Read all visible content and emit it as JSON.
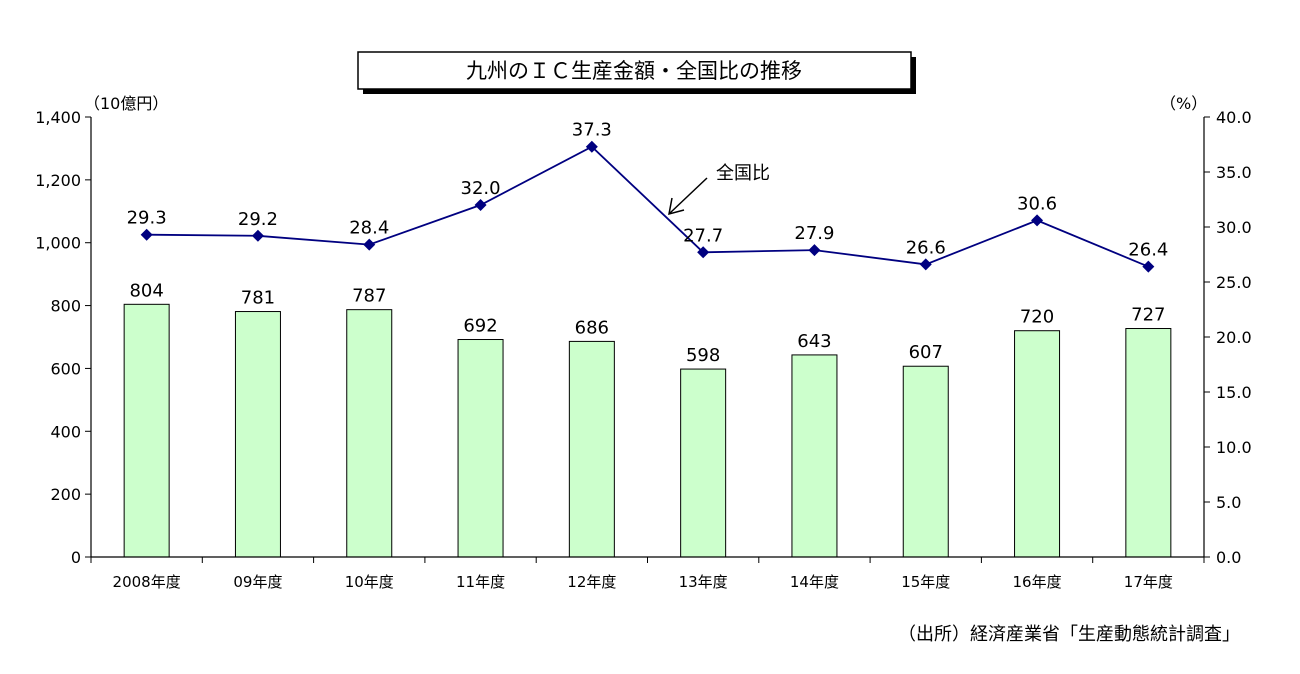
{
  "chart_data": {
    "type": "bar",
    "title": "九州のＩＣ生産金額・全国比の推移",
    "categories": [
      "2008年度",
      "09年度",
      "10年度",
      "11年度",
      "12年度",
      "13年度",
      "14年度",
      "15年度",
      "16年度",
      "17年度"
    ],
    "bar_series": {
      "values": [
        804,
        781,
        787,
        692,
        686,
        598,
        643,
        607,
        720,
        727
      ],
      "color": "#ccffcc"
    },
    "line_series": {
      "name": "全国比",
      "values": [
        29.3,
        29.2,
        28.4,
        32.0,
        37.3,
        27.7,
        27.9,
        26.6,
        30.6,
        26.4
      ],
      "value_labels": [
        "29.3",
        "29.2",
        "28.4",
        "32.0",
        "37.3",
        "27.7",
        "27.9",
        "26.6",
        "30.6",
        "26.4"
      ],
      "color": "#000080"
    },
    "y_left": {
      "unit_label": "（10億円）",
      "range": [
        0,
        1400
      ],
      "ticks": [
        0,
        200,
        400,
        600,
        800,
        1000,
        1200,
        1400
      ],
      "tick_labels": [
        "0",
        "200",
        "400",
        "600",
        "800",
        "1,000",
        "1,200",
        "1,400"
      ]
    },
    "y_right": {
      "unit_label": "（%）",
      "range": [
        0,
        40
      ],
      "ticks": [
        0,
        5,
        10,
        15,
        20,
        25,
        30,
        35,
        40
      ],
      "tick_labels": [
        "0.0",
        "5.0",
        "10.0",
        "15.0",
        "20.0",
        "25.0",
        "30.0",
        "35.0",
        "40.0"
      ]
    },
    "annotation": "全国比",
    "grid": false,
    "source": "（出所）経済産業省「生産動態統計調査」"
  }
}
